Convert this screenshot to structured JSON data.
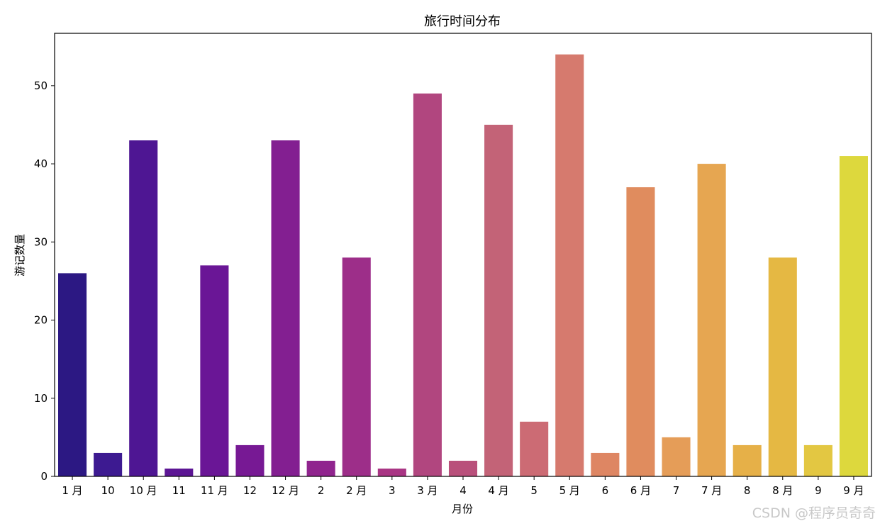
{
  "chart_data": {
    "type": "bar",
    "title": "旅行时间分布",
    "xlabel": "月份",
    "ylabel": "游记数量",
    "categories": [
      "1 月",
      "10",
      "10 月",
      "11",
      "11 月",
      "12",
      "12 月",
      "2",
      "2 月",
      "3",
      "3 月",
      "4",
      "4 月",
      "5",
      "5 月",
      "6",
      "6 月",
      "7",
      "7 月",
      "8",
      "8 月",
      "9",
      "9 月"
    ],
    "values": [
      26,
      3,
      43,
      1,
      27,
      4,
      43,
      2,
      28,
      1,
      49,
      2,
      45,
      7,
      54,
      3,
      37,
      5,
      40,
      4,
      28,
      4,
      41
    ],
    "colors": [
      "#2c1883",
      "#3d1a91",
      "#4e1693",
      "#5c1594",
      "#6a1696",
      "#771994",
      "#831f91",
      "#90248e",
      "#9d2e89",
      "#a93584",
      "#b1467f",
      "#b9507b",
      "#c36377",
      "#cc6b74",
      "#d67a6e",
      "#de8663",
      "#e08c5e",
      "#e59d58",
      "#e6a651",
      "#e6b048",
      "#e5b843",
      "#e3c742",
      "#ddd83d"
    ],
    "ylim": [
      0,
      56.7
    ],
    "yticks": [
      0,
      10,
      20,
      30,
      40,
      50
    ],
    "grid": false,
    "legend": "none"
  },
  "watermark": "CSDN @程序员奇奇"
}
